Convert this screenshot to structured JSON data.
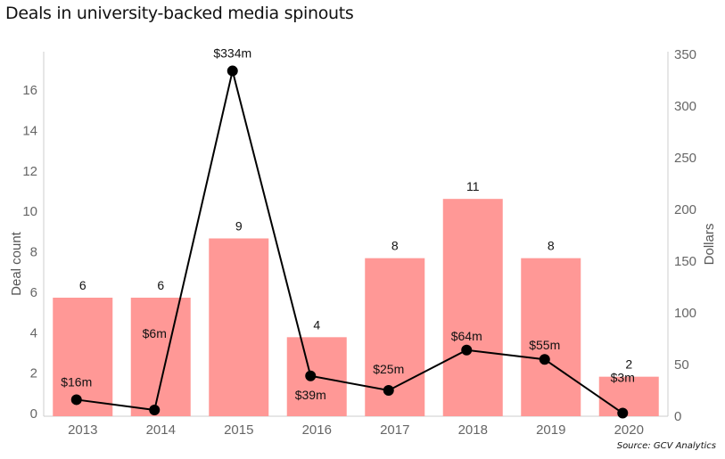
{
  "title": "Deals in university-backed media spinouts",
  "source": "Source: GCV Analytics",
  "colors": {
    "bar": "#ff9896",
    "line": "#000000",
    "axis": "#cccccc"
  },
  "chart_data": {
    "type": "bar+line",
    "title": "Deals in university-backed media spinouts",
    "categories": [
      "2013",
      "2014",
      "2015",
      "2016",
      "2017",
      "2018",
      "2019",
      "2020"
    ],
    "series": [
      {
        "name": "Deal count",
        "type": "bar",
        "axis": "left",
        "values": [
          6,
          6,
          9,
          4,
          8,
          11,
          8,
          2
        ],
        "labels": [
          "6",
          "6",
          "9",
          "4",
          "8",
          "11",
          "8",
          "2"
        ]
      },
      {
        "name": "Dollars",
        "type": "line",
        "axis": "right",
        "values": [
          16,
          6,
          334,
          39,
          25,
          64,
          55,
          3
        ],
        "labels": [
          "$16m",
          "$6m",
          "$334m",
          "$39m",
          "$25m",
          "$64m",
          "$55m",
          "$3m"
        ]
      }
    ],
    "left_axis": {
      "label": "Deal count",
      "ticks": [
        0,
        2,
        4,
        6,
        8,
        10,
        12,
        14,
        16
      ],
      "range": [
        0,
        17.3
      ]
    },
    "right_axis": {
      "label": "Dollars",
      "ticks": [
        0,
        50,
        100,
        150,
        200,
        250,
        300,
        350
      ],
      "range": [
        0,
        350
      ]
    },
    "xlabel": "",
    "grid": false,
    "legend": "none"
  }
}
